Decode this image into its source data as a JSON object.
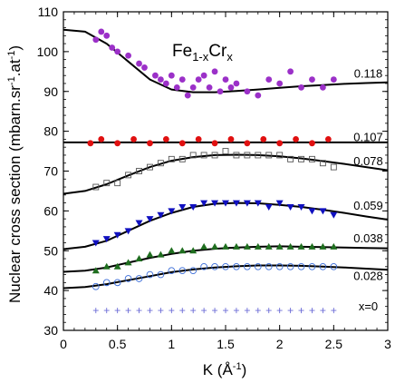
{
  "chart_data": {
    "type": "scatter",
    "title": "Fe",
    "title_sub_1": "1-x",
    "title_mid": "Cr",
    "title_sub_2": "x",
    "xlabel": "K (Å",
    "xlabel_sup": "-1",
    "xlabel_close": ")",
    "ylabel": "Nuclear cross section (mbarn.sr",
    "ylabel_sup1": "-1",
    "ylabel_mid": ".at",
    "ylabel_sup2": "-1",
    "ylabel_close": ")",
    "xlim": [
      0,
      3
    ],
    "ylim": [
      30,
      110
    ],
    "xticks": [
      "0",
      "0.5",
      "1",
      "1.5",
      "2",
      "2.5",
      "3"
    ],
    "yticks": [
      "30",
      "40",
      "50",
      "60",
      "70",
      "80",
      "90",
      "100",
      "110"
    ],
    "grid": false,
    "x_range_data": [
      0.23,
      2.5
    ],
    "series": [
      {
        "name": "0.118",
        "marker": "circle-filled",
        "color": "#9b30c8",
        "fit_color": "#000000",
        "fit_knots": [
          [
            0,
            105.5
          ],
          [
            0.2,
            105
          ],
          [
            0.4,
            102
          ],
          [
            0.6,
            97.5
          ],
          [
            0.8,
            93
          ],
          [
            1.0,
            90.5
          ],
          [
            1.2,
            89.8
          ],
          [
            1.4,
            89.8
          ],
          [
            1.6,
            90.1
          ],
          [
            1.8,
            90.5
          ],
          [
            2.0,
            90.9
          ],
          [
            2.2,
            91.3
          ],
          [
            2.4,
            91.6
          ],
          [
            2.6,
            91.9
          ],
          [
            2.8,
            92.1
          ],
          [
            3.0,
            92.3
          ]
        ],
        "points": [
          [
            0.3,
            103
          ],
          [
            0.35,
            105
          ],
          [
            0.4,
            104
          ],
          [
            0.45,
            101
          ],
          [
            0.5,
            100
          ],
          [
            0.6,
            99
          ],
          [
            0.7,
            97
          ],
          [
            0.75,
            96
          ],
          [
            0.85,
            94
          ],
          [
            0.9,
            93
          ],
          [
            0.95,
            92
          ],
          [
            1.0,
            94
          ],
          [
            1.05,
            91
          ],
          [
            1.1,
            93
          ],
          [
            1.15,
            89
          ],
          [
            1.2,
            91
          ],
          [
            1.25,
            93
          ],
          [
            1.3,
            94
          ],
          [
            1.35,
            91
          ],
          [
            1.4,
            95
          ],
          [
            1.45,
            90
          ],
          [
            1.5,
            93
          ],
          [
            1.55,
            91
          ],
          [
            1.6,
            92
          ],
          [
            1.7,
            90
          ],
          [
            1.8,
            89
          ],
          [
            1.9,
            93
          ],
          [
            2.0,
            92
          ],
          [
            2.1,
            95
          ],
          [
            2.2,
            91
          ],
          [
            2.3,
            93
          ],
          [
            2.4,
            91
          ],
          [
            2.5,
            93
          ]
        ],
        "label_pos": [
          2.82,
          93.5
        ]
      },
      {
        "name": "0.107",
        "marker": "circle-filled",
        "color": "#e01010",
        "fit_color": "#000000",
        "fit_knots": [
          [
            0,
            77.2
          ],
          [
            3.0,
            77.2
          ]
        ],
        "points": [
          [
            0.25,
            77
          ],
          [
            0.35,
            78
          ],
          [
            0.5,
            77
          ],
          [
            0.65,
            78
          ],
          [
            0.8,
            77
          ],
          [
            0.95,
            78
          ],
          [
            1.1,
            77
          ],
          [
            1.25,
            78
          ],
          [
            1.4,
            77
          ],
          [
            1.55,
            78
          ],
          [
            1.7,
            77
          ],
          [
            1.85,
            78
          ],
          [
            2.0,
            77
          ],
          [
            2.15,
            78
          ],
          [
            2.3,
            77
          ],
          [
            2.45,
            78
          ]
        ],
        "label_pos": [
          2.82,
          77.5
        ]
      },
      {
        "name": "0.078",
        "marker": "square-open",
        "color": "#555555",
        "fit_color": "#000000",
        "fit_knots": [
          [
            0,
            64.3
          ],
          [
            0.2,
            65
          ],
          [
            0.4,
            66.7
          ],
          [
            0.6,
            68.9
          ],
          [
            0.8,
            71
          ],
          [
            1.0,
            72.6
          ],
          [
            1.2,
            73.5
          ],
          [
            1.4,
            74
          ],
          [
            1.6,
            74.1
          ],
          [
            1.8,
            74
          ],
          [
            2.0,
            73.7
          ],
          [
            2.2,
            73.2
          ],
          [
            2.4,
            72.5
          ],
          [
            2.6,
            71.8
          ],
          [
            2.8,
            71
          ],
          [
            3.0,
            70.2
          ]
        ],
        "points": [
          [
            0.3,
            66
          ],
          [
            0.4,
            67
          ],
          [
            0.5,
            67
          ],
          [
            0.6,
            69
          ],
          [
            0.7,
            70
          ],
          [
            0.8,
            71
          ],
          [
            0.9,
            72
          ],
          [
            1.0,
            73
          ],
          [
            1.1,
            73
          ],
          [
            1.2,
            74
          ],
          [
            1.3,
            74
          ],
          [
            1.4,
            74
          ],
          [
            1.5,
            75
          ],
          [
            1.6,
            74
          ],
          [
            1.7,
            74
          ],
          [
            1.8,
            74
          ],
          [
            1.9,
            74
          ],
          [
            2.0,
            74
          ],
          [
            2.1,
            73
          ],
          [
            2.2,
            73
          ],
          [
            2.3,
            73
          ],
          [
            2.4,
            72
          ],
          [
            2.5,
            71
          ]
        ],
        "label_pos": [
          2.82,
          71.5
        ]
      },
      {
        "name": "0.059",
        "marker": "triangle-down-filled",
        "color": "#1010c0",
        "fit_color": "#000000",
        "fit_knots": [
          [
            0,
            50.4
          ],
          [
            0.2,
            51
          ],
          [
            0.4,
            52.5
          ],
          [
            0.6,
            55
          ],
          [
            0.8,
            57.5
          ],
          [
            1.0,
            59.5
          ],
          [
            1.2,
            61
          ],
          [
            1.4,
            61.8
          ],
          [
            1.6,
            62
          ],
          [
            1.8,
            61.9
          ],
          [
            2.0,
            61.5
          ],
          [
            2.2,
            61
          ],
          [
            2.4,
            60.3
          ],
          [
            2.6,
            59.5
          ],
          [
            2.8,
            58.6
          ],
          [
            3.0,
            57.8
          ]
        ],
        "points": [
          [
            0.3,
            52
          ],
          [
            0.4,
            53
          ],
          [
            0.5,
            54
          ],
          [
            0.6,
            55
          ],
          [
            0.7,
            57
          ],
          [
            0.8,
            58
          ],
          [
            0.9,
            59
          ],
          [
            1.0,
            60
          ],
          [
            1.1,
            61
          ],
          [
            1.2,
            61
          ],
          [
            1.3,
            62
          ],
          [
            1.4,
            62
          ],
          [
            1.5,
            62
          ],
          [
            1.6,
            62
          ],
          [
            1.7,
            62
          ],
          [
            1.8,
            62
          ],
          [
            1.9,
            61
          ],
          [
            2.0,
            62
          ],
          [
            2.1,
            61
          ],
          [
            2.2,
            61
          ],
          [
            2.3,
            60
          ],
          [
            2.4,
            60
          ],
          [
            2.5,
            59
          ]
        ],
        "label_pos": [
          2.82,
          60.3
        ]
      },
      {
        "name": "0.038",
        "marker": "triangle-up-filled",
        "color": "#1f6e1f",
        "fit_color": "#000000",
        "fit_knots": [
          [
            0,
            44.7
          ],
          [
            0.2,
            45
          ],
          [
            0.4,
            45.8
          ],
          [
            0.6,
            47
          ],
          [
            0.8,
            48.2
          ],
          [
            1.0,
            49.2
          ],
          [
            1.2,
            50
          ],
          [
            1.4,
            50.5
          ],
          [
            1.6,
            50.8
          ],
          [
            1.8,
            51
          ],
          [
            2.0,
            51.1
          ],
          [
            2.2,
            51
          ],
          [
            2.4,
            50.9
          ],
          [
            2.6,
            50.8
          ],
          [
            2.8,
            50.7
          ],
          [
            3.0,
            50.6
          ]
        ],
        "points": [
          [
            0.3,
            45
          ],
          [
            0.4,
            46
          ],
          [
            0.5,
            46
          ],
          [
            0.6,
            47
          ],
          [
            0.7,
            48
          ],
          [
            0.8,
            49
          ],
          [
            0.9,
            49
          ],
          [
            1.0,
            50
          ],
          [
            1.1,
            50
          ],
          [
            1.2,
            50
          ],
          [
            1.3,
            51
          ],
          [
            1.4,
            51
          ],
          [
            1.5,
            51
          ],
          [
            1.6,
            51
          ],
          [
            1.7,
            51
          ],
          [
            1.8,
            51
          ],
          [
            1.9,
            51
          ],
          [
            2.0,
            51
          ],
          [
            2.1,
            51
          ],
          [
            2.2,
            51
          ],
          [
            2.3,
            51
          ],
          [
            2.4,
            51
          ],
          [
            2.5,
            51
          ]
        ],
        "label_pos": [
          2.82,
          52.1
        ]
      },
      {
        "name": "0.028",
        "marker": "circle-open",
        "color": "#3a6cd8",
        "fit_color": "#000000",
        "fit_knots": [
          [
            0,
            40.6
          ],
          [
            0.2,
            40.9
          ],
          [
            0.4,
            41.6
          ],
          [
            0.6,
            42.6
          ],
          [
            0.8,
            43.6
          ],
          [
            1.0,
            44.6
          ],
          [
            1.2,
            45.3
          ],
          [
            1.4,
            45.8
          ],
          [
            1.6,
            46.1
          ],
          [
            1.8,
            46.3
          ],
          [
            2.0,
            46.3
          ],
          [
            2.2,
            46.2
          ],
          [
            2.4,
            46
          ],
          [
            2.6,
            45.8
          ],
          [
            2.8,
            45.5
          ],
          [
            3.0,
            45.2
          ]
        ],
        "points": [
          [
            0.3,
            41
          ],
          [
            0.4,
            42
          ],
          [
            0.5,
            42
          ],
          [
            0.6,
            43
          ],
          [
            0.7,
            43
          ],
          [
            0.8,
            44
          ],
          [
            0.9,
            44
          ],
          [
            1.0,
            45
          ],
          [
            1.1,
            45
          ],
          [
            1.2,
            45
          ],
          [
            1.3,
            46
          ],
          [
            1.4,
            46
          ],
          [
            1.5,
            46
          ],
          [
            1.6,
            46
          ],
          [
            1.7,
            46
          ],
          [
            1.8,
            46
          ],
          [
            1.9,
            46
          ],
          [
            2.0,
            46
          ],
          [
            2.1,
            46
          ],
          [
            2.2,
            46
          ],
          [
            2.3,
            46
          ],
          [
            2.4,
            46
          ],
          [
            2.5,
            46
          ]
        ],
        "label_pos": [
          2.82,
          42.6
        ]
      },
      {
        "name": "x=0",
        "marker": "plus",
        "color": "#6b6bd6",
        "fit_color": null,
        "fit_knots": [],
        "points": [
          [
            0.3,
            35
          ],
          [
            0.4,
            35
          ],
          [
            0.5,
            35
          ],
          [
            0.6,
            35
          ],
          [
            0.7,
            35
          ],
          [
            0.8,
            35
          ],
          [
            0.9,
            35
          ],
          [
            1.0,
            35
          ],
          [
            1.1,
            35
          ],
          [
            1.2,
            35
          ],
          [
            1.3,
            35
          ],
          [
            1.4,
            35
          ],
          [
            1.5,
            35
          ],
          [
            1.6,
            35
          ],
          [
            1.7,
            35
          ],
          [
            1.8,
            35
          ],
          [
            1.9,
            35
          ],
          [
            2.0,
            35
          ],
          [
            2.1,
            35
          ],
          [
            2.2,
            35
          ],
          [
            2.3,
            35
          ],
          [
            2.4,
            35
          ],
          [
            2.5,
            35
          ]
        ],
        "label_pos": [
          2.82,
          35
        ]
      }
    ]
  }
}
